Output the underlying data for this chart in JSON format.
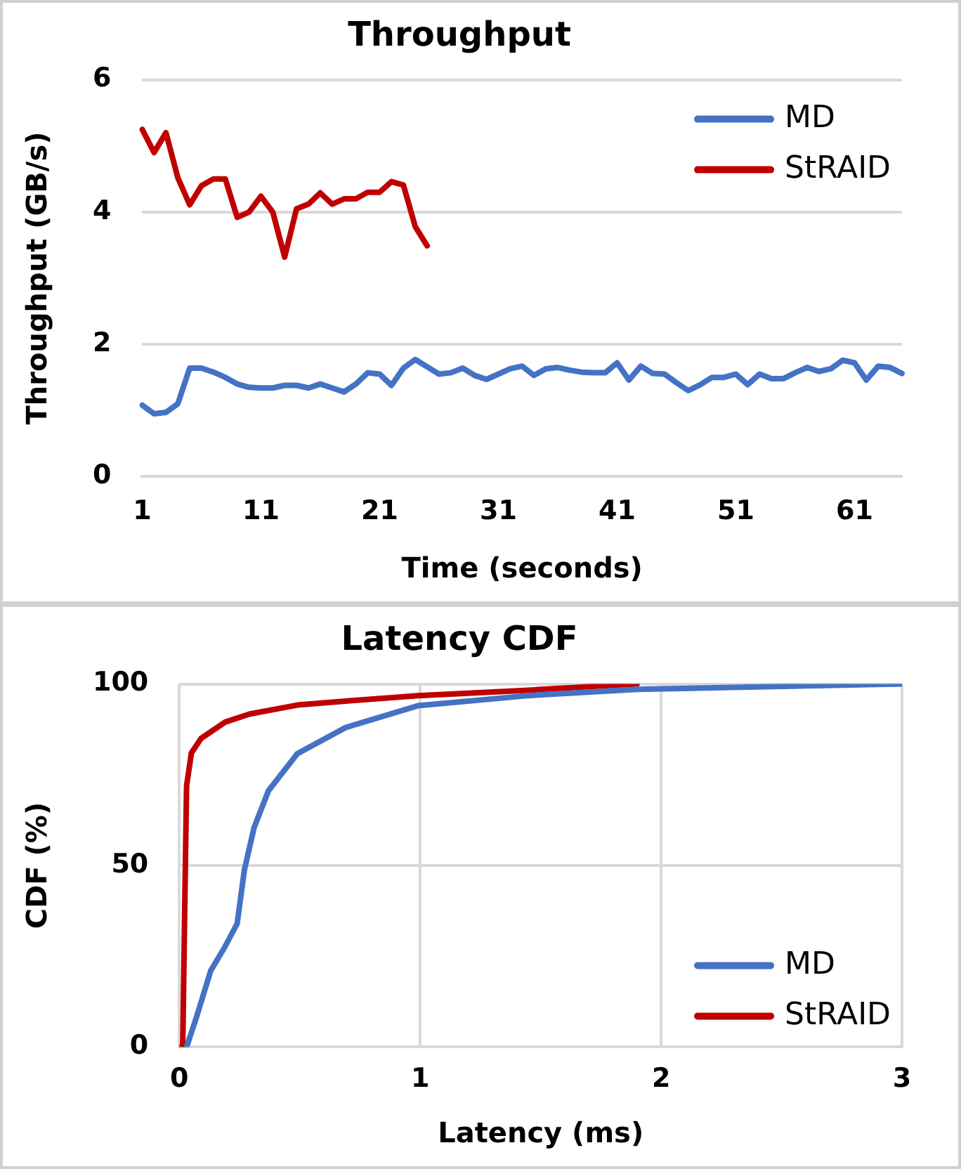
{
  "chart_data": [
    {
      "type": "line",
      "title": "Throughput",
      "xlabel": "Time (seconds)",
      "ylabel": "Throughput (GB/s)",
      "categories": [
        "1",
        null,
        null,
        null,
        null,
        null,
        null,
        null,
        null,
        null,
        "11",
        null,
        null,
        null,
        null,
        null,
        null,
        null,
        null,
        null,
        "21",
        null,
        null,
        null,
        null,
        null,
        null,
        null,
        null,
        null,
        "31",
        null,
        null,
        null,
        null,
        null,
        null,
        null,
        null,
        null,
        "41",
        null,
        null,
        null,
        null,
        null,
        null,
        null,
        null,
        null,
        "51",
        null,
        null,
        null,
        null,
        null,
        null,
        null,
        null,
        null,
        "61",
        null,
        null,
        null,
        null
      ],
      "series": [
        {
          "name": "MD",
          "color": "#4472c4",
          "values": [
            1.08,
            0.95,
            0.97,
            1.1,
            1.64,
            1.64,
            1.58,
            1.5,
            1.4,
            1.35,
            1.34,
            1.34,
            1.38,
            1.38,
            1.34,
            1.4,
            1.34,
            1.28,
            1.4,
            1.57,
            1.55,
            1.38,
            1.64,
            1.77,
            1.66,
            1.55,
            1.57,
            1.64,
            1.53,
            1.47,
            1.55,
            1.63,
            1.67,
            1.53,
            1.63,
            1.65,
            1.61,
            1.58,
            1.57,
            1.57,
            1.72,
            1.46,
            1.67,
            1.56,
            1.55,
            1.42,
            1.3,
            1.39,
            1.5,
            1.5,
            1.55,
            1.39,
            1.55,
            1.48,
            1.48,
            1.57,
            1.65,
            1.59,
            1.63,
            1.76,
            1.72,
            1.46,
            1.67,
            1.65,
            1.56
          ]
        },
        {
          "name": "StRAID",
          "color": "#c00000",
          "values": [
            5.25,
            4.9,
            5.2,
            4.52,
            4.11,
            4.4,
            4.5,
            4.5,
            3.92,
            4.0,
            4.24,
            4.0,
            3.32,
            4.05,
            4.12,
            4.29,
            4.12,
            4.2,
            4.2,
            4.3,
            4.3,
            4.46,
            4.41,
            3.78,
            3.49,
            null,
            null,
            null,
            null,
            null,
            null,
            null,
            null,
            null,
            null,
            null,
            null,
            null,
            null,
            null,
            null,
            null,
            null,
            null,
            null,
            null,
            null,
            null,
            null,
            null,
            null,
            null,
            null,
            null,
            null,
            null,
            null,
            null,
            null,
            null,
            null,
            null,
            null,
            null,
            null
          ]
        }
      ],
      "ylim": [
        0,
        6
      ],
      "yticks": [
        0,
        2,
        4,
        6
      ],
      "grid": "y",
      "legend": "top right",
      "marker": "none",
      "line_style": "solid"
    },
    {
      "type": "line",
      "title": "Latency CDF",
      "xlabel": "Latency (ms)",
      "ylabel": "CDF (%)",
      "series": [
        {
          "name": "MD",
          "color": "#4472c4",
          "x": [
            0.03,
            0.07,
            0.13,
            0.19,
            0.24,
            0.27,
            0.31,
            0.37,
            0.49,
            0.69,
            0.99,
            1.45,
            1.9,
            3.0
          ],
          "values": [
            0,
            8,
            21,
            27.7,
            34,
            48.8,
            60.4,
            70.6,
            80.8,
            88,
            94,
            96.8,
            98.5,
            100
          ]
        },
        {
          "name": "StRAID",
          "color": "#c00000",
          "x": [
            0,
            0.014,
            0.022,
            0.03,
            0.05,
            0.09,
            0.19,
            0.29,
            0.49,
            0.69,
            0.99,
            1.45,
            1.9
          ],
          "values": [
            0,
            0,
            37,
            72,
            81,
            85,
            89.5,
            91.7,
            94.2,
            95.3,
            96.8,
            98.3,
            100
          ]
        }
      ],
      "xlim": [
        0,
        3
      ],
      "xticks": [
        0,
        1,
        2,
        3
      ],
      "ylim": [
        0,
        100
      ],
      "yticks": [
        0,
        50,
        100
      ],
      "grid": true,
      "legend": "bottom right",
      "marker": "none",
      "line_style": "solid"
    }
  ]
}
